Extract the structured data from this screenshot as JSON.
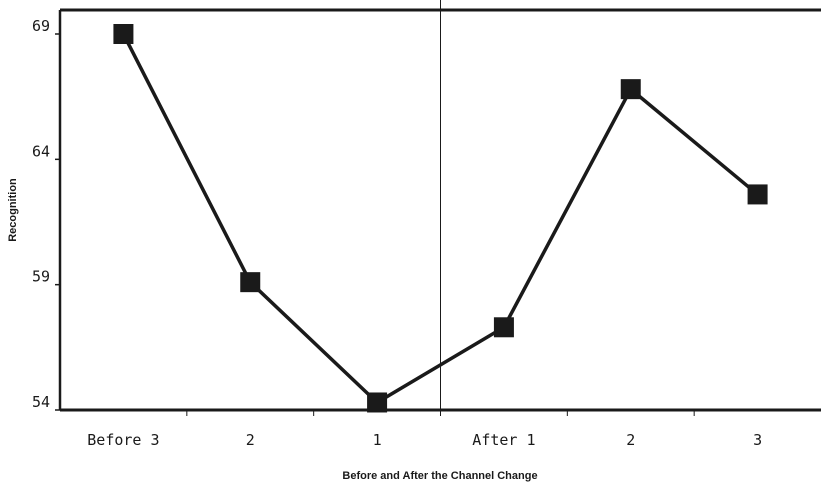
{
  "chart_data": {
    "type": "line",
    "title": "",
    "xlabel": "Before and After the Channel Change",
    "ylabel": "Recognition",
    "categories": [
      "Before 3",
      "2",
      "1",
      "After 1",
      "2",
      "3"
    ],
    "series": [
      {
        "values": [
          69.0,
          59.1,
          54.3,
          57.3,
          66.8,
          62.6
        ]
      }
    ],
    "ylim": [
      54,
      69
    ],
    "yticks": [
      "54",
      "59",
      "64",
      "69"
    ],
    "divider_after_category": 3,
    "grid": false,
    "marker": "square",
    "colors": {
      "line": "#1a1a1a",
      "marker": "#1a1a1a",
      "axis": "#1a1a1a"
    }
  }
}
